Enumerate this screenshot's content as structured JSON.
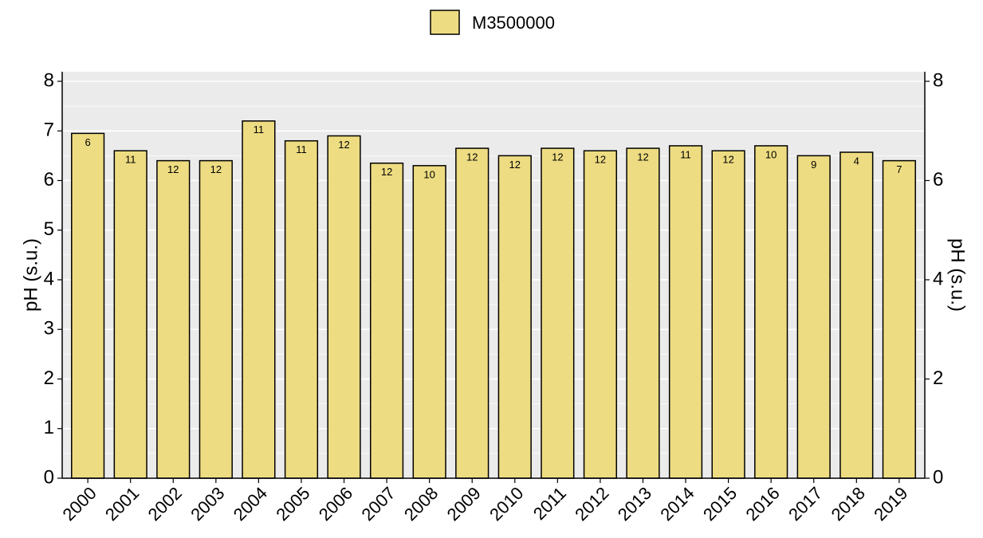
{
  "chart_data": {
    "type": "bar",
    "categories": [
      "2000",
      "2001",
      "2002",
      "2003",
      "2004",
      "2005",
      "2006",
      "2007",
      "2008",
      "2009",
      "2010",
      "2011",
      "2012",
      "2013",
      "2014",
      "2015",
      "2016",
      "2017",
      "2018",
      "2019"
    ],
    "series": [
      {
        "name": "M3500000",
        "color": "#eedc82",
        "values": [
          6.95,
          6.6,
          6.4,
          6.4,
          7.2,
          6.8,
          6.9,
          6.35,
          6.3,
          6.65,
          6.5,
          6.65,
          6.6,
          6.65,
          6.7,
          6.6,
          6.7,
          6.5,
          6.57,
          6.4
        ]
      }
    ],
    "bar_labels": [
      6,
      11,
      12,
      12,
      11,
      11,
      12,
      12,
      10,
      12,
      12,
      12,
      12,
      12,
      11,
      12,
      10,
      9,
      4,
      7
    ],
    "ylabel": "pH (s.u.)",
    "y2label": "pH (s.u.)",
    "ylim": [
      0,
      8
    ],
    "yticks": [
      0,
      1,
      2,
      3,
      4,
      5,
      6,
      7,
      8
    ],
    "y2lim": [
      0,
      8
    ],
    "y2ticks": [
      0,
      2,
      4,
      6,
      8
    ],
    "grid": true,
    "legend": "top"
  }
}
